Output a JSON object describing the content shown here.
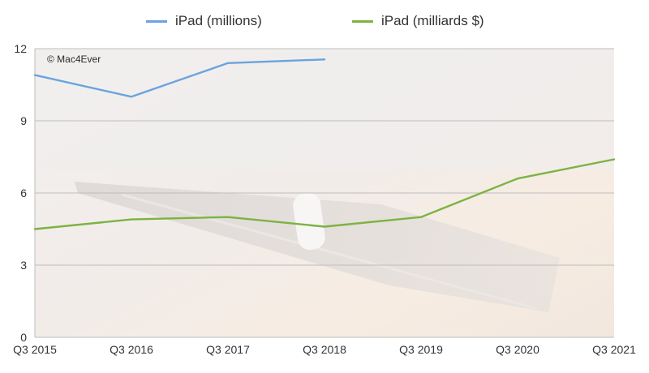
{
  "legend": {
    "series_a": "iPad (millions)",
    "series_b": "iPad (milliards $)"
  },
  "watermark": "© Mac4Ever",
  "colors": {
    "series_a": "#6aa3de",
    "series_b": "#7cb342",
    "grid": "#bdbdbd",
    "axis_text": "#333333"
  },
  "chart_data": {
    "type": "line",
    "x_categories": [
      "Q3 2015",
      "Q3 2016",
      "Q3 2017",
      "Q3 2018",
      "Q3 2019",
      "Q3 2020",
      "Q3 2021"
    ],
    "y_ticks": [
      0,
      3,
      6,
      9,
      12
    ],
    "ylim": [
      0,
      12
    ],
    "grid": true,
    "legend_position": "top",
    "series": [
      {
        "name": "iPad (millions)",
        "color": "#6aa3de",
        "points": [
          {
            "x": "Q3 2015",
            "y": 10.9
          },
          {
            "x": "Q3 2016",
            "y": 10.0
          },
          {
            "x": "Q3 2017",
            "y": 11.4
          },
          {
            "x": "Q3 2018",
            "y": 11.55
          }
        ]
      },
      {
        "name": "iPad (milliards $)",
        "color": "#7cb342",
        "points": [
          {
            "x": "Q3 2015",
            "y": 4.5
          },
          {
            "x": "Q3 2016",
            "y": 4.9
          },
          {
            "x": "Q3 2017",
            "y": 5.0
          },
          {
            "x": "Q3 2018",
            "y": 4.6
          },
          {
            "x": "Q3 2019",
            "y": 5.0
          },
          {
            "x": "Q3 2020",
            "y": 6.6
          },
          {
            "x": "Q3 2021",
            "y": 7.4
          }
        ]
      }
    ]
  }
}
